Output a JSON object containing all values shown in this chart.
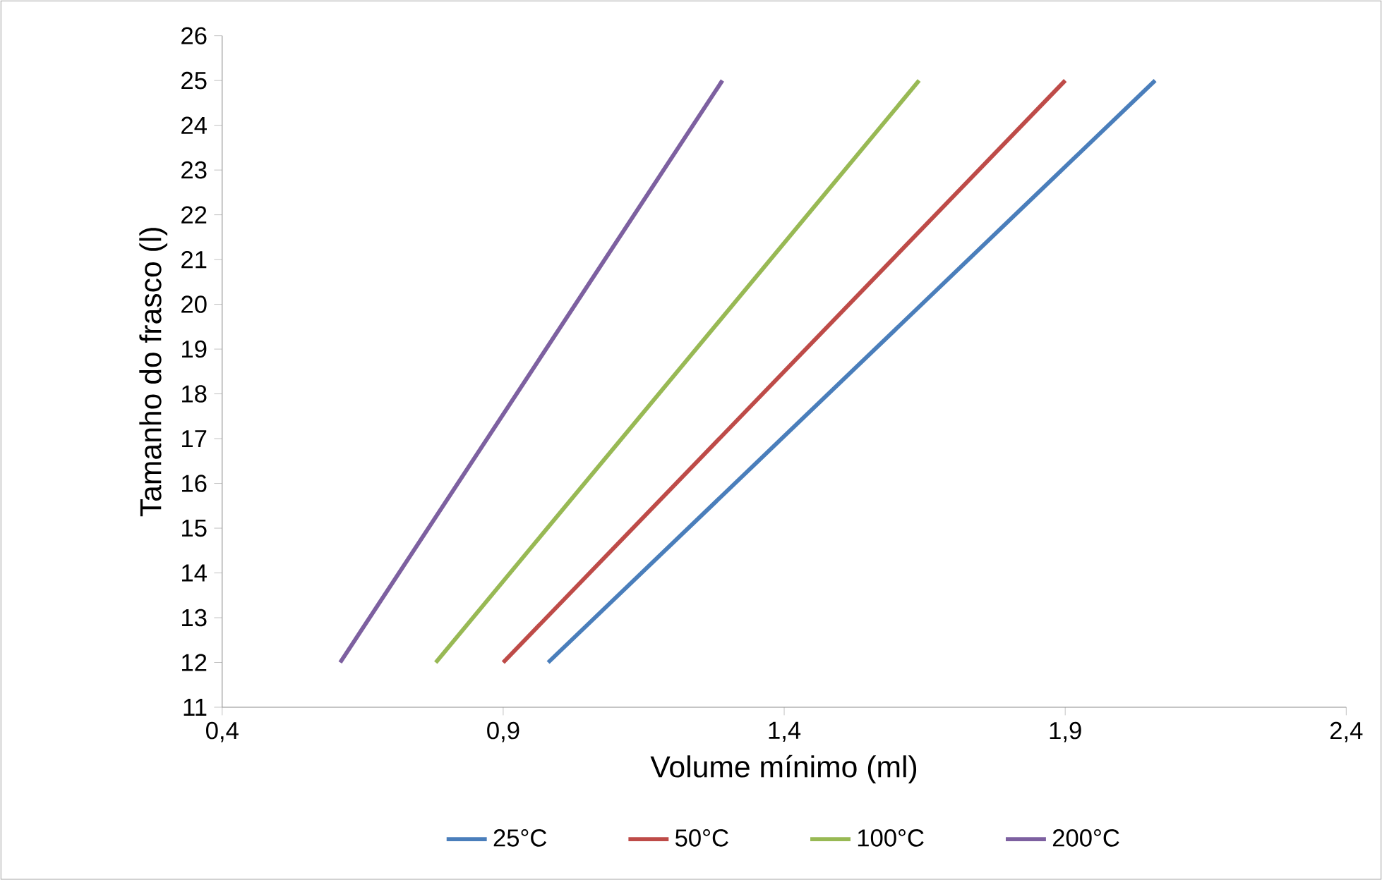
{
  "chart_data": {
    "type": "line",
    "xlabel": "Volume mínimo (ml)",
    "ylabel": "Tamanho do frasco (l)",
    "xlim": [
      0.4,
      2.4
    ],
    "xticks": [
      {
        "value": 0.4,
        "label": "0,4"
      },
      {
        "value": 0.9,
        "label": "0,9"
      },
      {
        "value": 1.4,
        "label": "1,4"
      },
      {
        "value": 1.9,
        "label": "1,9"
      },
      {
        "value": 2.4,
        "label": "2,4"
      }
    ],
    "ylim": [
      11,
      26
    ],
    "yticks": [
      11,
      12,
      13,
      14,
      15,
      16,
      17,
      18,
      19,
      20,
      21,
      22,
      23,
      24,
      25,
      26
    ],
    "legend": "bottom",
    "marker": "none",
    "line_style": "solid",
    "series": [
      {
        "name": "25°C",
        "color": "#4a7ebb",
        "x": [
          0.98,
          2.06
        ],
        "values": [
          12,
          25
        ]
      },
      {
        "name": "50°C",
        "color": "#be4b48",
        "x": [
          0.9,
          1.9
        ],
        "values": [
          12,
          25
        ]
      },
      {
        "name": "100°C",
        "color": "#98b954",
        "x": [
          0.78,
          1.64
        ],
        "values": [
          12,
          25
        ]
      },
      {
        "name": "200°C",
        "color": "#7d60a0",
        "x": [
          0.61,
          1.29
        ],
        "values": [
          12,
          25
        ]
      }
    ]
  }
}
